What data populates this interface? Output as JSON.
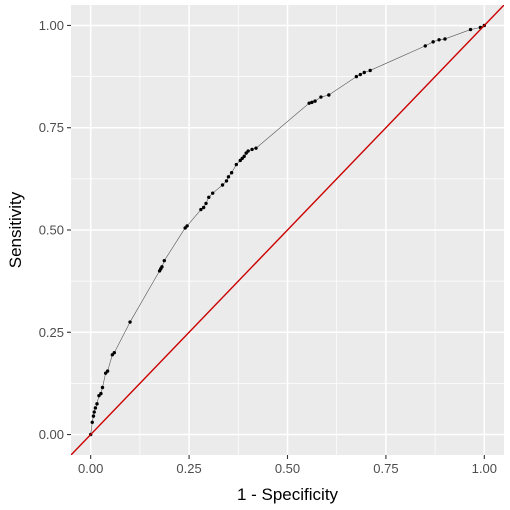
{
  "chart_data": {
    "type": "line",
    "title": "",
    "xlabel": "1 - Specificity",
    "ylabel": "Sensitivity",
    "xlim": [
      -0.05,
      1.05
    ],
    "ylim": [
      -0.05,
      1.05
    ],
    "x_ticks": [
      0,
      0.25,
      0.5,
      0.75,
      1
    ],
    "x_tick_labels": [
      "0.00",
      "0.25",
      "0.50",
      "0.75",
      "1.00"
    ],
    "y_ticks": [
      0,
      0.25,
      0.5,
      0.75,
      1
    ],
    "y_tick_labels": [
      "0.00",
      "0.25",
      "0.50",
      "0.75",
      "1.00"
    ],
    "grid": true,
    "legend": "none",
    "colors": {
      "panel_background": "#ebebeb",
      "grid": "#ffffff",
      "roc_line": "#000000",
      "reference_line": "#cc0000"
    },
    "series": [
      {
        "values_x": [
          0,
          0.004,
          0.007,
          0.009,
          0.012,
          0.016,
          0.021,
          0.026,
          0.03,
          0.038,
          0.043,
          0.055,
          0.06,
          0.1,
          0.175,
          0.178,
          0.181,
          0.187,
          0.24,
          0.245,
          0.28,
          0.287,
          0.293,
          0.3,
          0.31,
          0.335,
          0.345,
          0.35,
          0.358,
          0.37,
          0.38,
          0.385,
          0.39,
          0.395,
          0.4,
          0.41,
          0.42,
          0.555,
          0.562,
          0.57,
          0.585,
          0.605,
          0.675,
          0.685,
          0.695,
          0.71,
          0.85,
          0.87,
          0.885,
          0.9,
          0.965,
          0.99,
          1
        ],
        "values_y": [
          0,
          0.03,
          0.045,
          0.055,
          0.065,
          0.075,
          0.095,
          0.1,
          0.115,
          0.15,
          0.155,
          0.195,
          0.2,
          0.275,
          0.4,
          0.405,
          0.41,
          0.425,
          0.505,
          0.51,
          0.55,
          0.555,
          0.565,
          0.58,
          0.59,
          0.61,
          0.62,
          0.63,
          0.64,
          0.66,
          0.67,
          0.675,
          0.68,
          0.688,
          0.693,
          0.697,
          0.7,
          0.81,
          0.812,
          0.815,
          0.825,
          0.83,
          0.875,
          0.88,
          0.885,
          0.89,
          0.95,
          0.96,
          0.965,
          0.967,
          0.99,
          0.995,
          1
        ]
      },
      {
        "values_x": [
          -0.05,
          1.05
        ],
        "values_y": [
          -0.05,
          1.05
        ]
      }
    ]
  }
}
